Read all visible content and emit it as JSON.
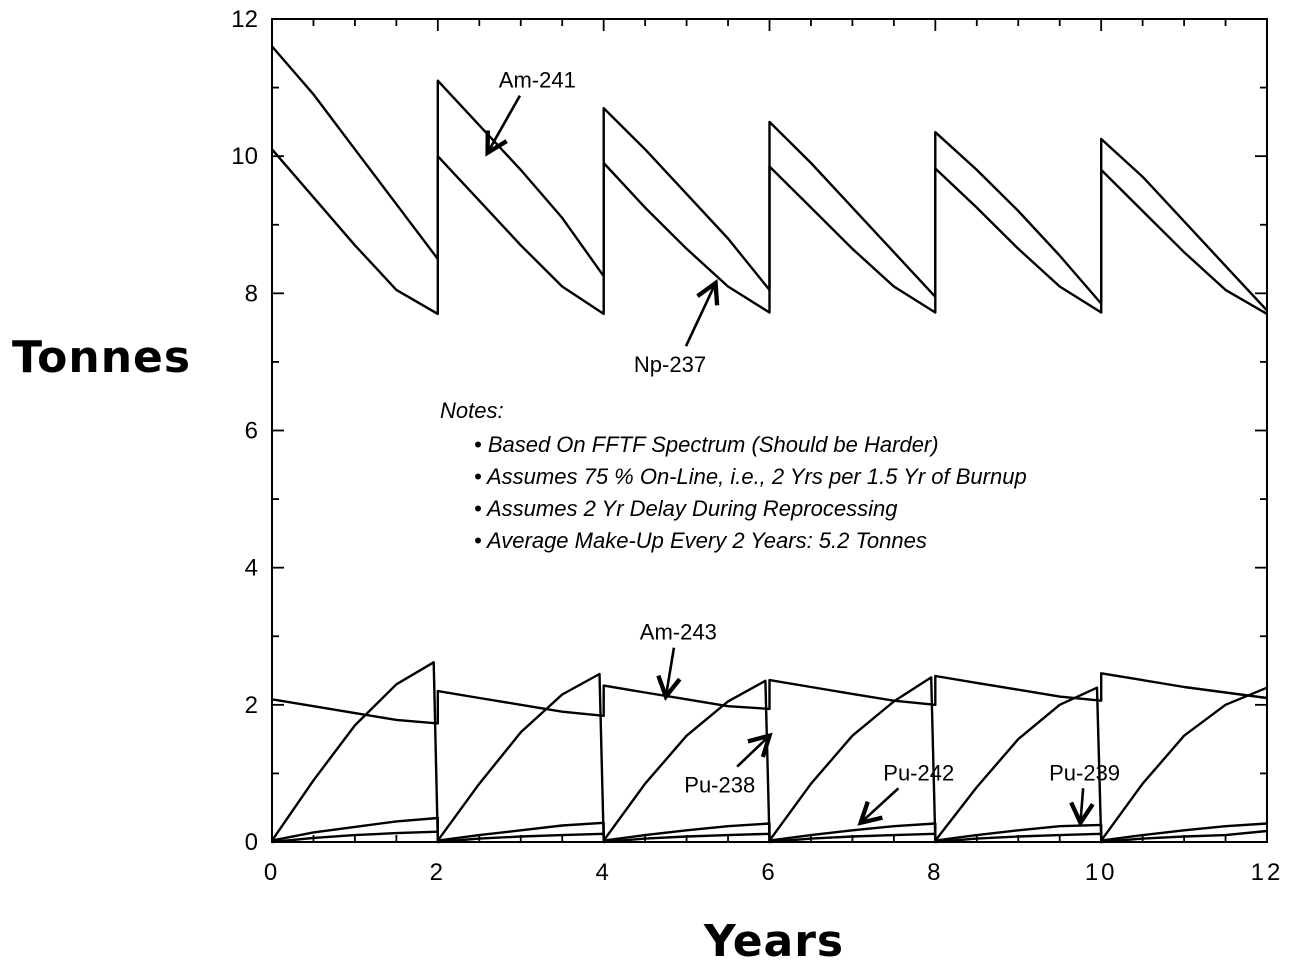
{
  "chart_data": {
    "type": "line",
    "xlabel": "Years",
    "ylabel": "Tonnes",
    "xlim": [
      0,
      12
    ],
    "ylim": [
      0,
      12
    ],
    "x_ticks": [
      "0",
      "2",
      "4",
      "6",
      "8",
      "10",
      "12"
    ],
    "y_ticks": [
      "0",
      "2",
      "4",
      "6",
      "8",
      "10",
      "12"
    ],
    "grid": false,
    "series": [
      {
        "name": "Am-241",
        "segments": [
          [
            [
              0,
              11.6
            ],
            [
              0.5,
              10.9
            ],
            [
              1,
              10.1
            ],
            [
              1.5,
              9.3
            ],
            [
              2,
              8.5
            ]
          ],
          [
            [
              2,
              11.1
            ],
            [
              2.5,
              10.45
            ],
            [
              3,
              9.8
            ],
            [
              3.5,
              9.1
            ],
            [
              4,
              8.25
            ]
          ],
          [
            [
              4,
              10.7
            ],
            [
              4.5,
              10.1
            ],
            [
              5,
              9.45
            ],
            [
              5.5,
              8.8
            ],
            [
              6,
              8.05
            ]
          ],
          [
            [
              6,
              10.5
            ],
            [
              6.5,
              9.9
            ],
            [
              7,
              9.25
            ],
            [
              7.5,
              8.6
            ],
            [
              8,
              7.95
            ]
          ],
          [
            [
              8,
              10.35
            ],
            [
              8.5,
              9.8
            ],
            [
              9,
              9.2
            ],
            [
              9.5,
              8.55
            ],
            [
              10,
              7.85
            ]
          ],
          [
            [
              10,
              10.25
            ],
            [
              10.5,
              9.7
            ],
            [
              11,
              9.05
            ],
            [
              11.5,
              8.4
            ],
            [
              12,
              7.75
            ]
          ]
        ]
      },
      {
        "name": "Np-237",
        "segments": [
          [
            [
              0,
              10.1
            ],
            [
              0.5,
              9.4
            ],
            [
              1,
              8.7
            ],
            [
              1.5,
              8.05
            ],
            [
              2,
              7.7
            ]
          ],
          [
            [
              2,
              10.0
            ],
            [
              2.5,
              9.35
            ],
            [
              3,
              8.7
            ],
            [
              3.5,
              8.1
            ],
            [
              4,
              7.7
            ]
          ],
          [
            [
              4,
              9.9
            ],
            [
              4.5,
              9.25
            ],
            [
              5,
              8.65
            ],
            [
              5.5,
              8.1
            ],
            [
              6,
              7.72
            ]
          ],
          [
            [
              6,
              9.85
            ],
            [
              6.5,
              9.25
            ],
            [
              7,
              8.65
            ],
            [
              7.5,
              8.1
            ],
            [
              8,
              7.72
            ]
          ],
          [
            [
              8,
              9.82
            ],
            [
              8.5,
              9.25
            ],
            [
              9,
              8.65
            ],
            [
              9.5,
              8.1
            ],
            [
              10,
              7.72
            ]
          ],
          [
            [
              10,
              9.8
            ],
            [
              10.5,
              9.2
            ],
            [
              11,
              8.6
            ],
            [
              11.5,
              8.05
            ],
            [
              12,
              7.7
            ]
          ]
        ]
      },
      {
        "name": "Am-243",
        "segments": [
          [
            [
              0,
              2.08
            ],
            [
              0.5,
              1.98
            ],
            [
              1,
              1.88
            ],
            [
              1.5,
              1.78
            ],
            [
              2,
              1.73
            ]
          ],
          [
            [
              2,
              2.2
            ],
            [
              2.5,
              2.1
            ],
            [
              3,
              2.0
            ],
            [
              3.5,
              1.9
            ],
            [
              4,
              1.84
            ]
          ],
          [
            [
              4,
              2.28
            ],
            [
              4.5,
              2.18
            ],
            [
              5,
              2.08
            ],
            [
              5.5,
              1.98
            ],
            [
              6,
              1.94
            ]
          ],
          [
            [
              6,
              2.36
            ],
            [
              6.5,
              2.26
            ],
            [
              7,
              2.16
            ],
            [
              7.5,
              2.06
            ],
            [
              8,
              2.0
            ]
          ],
          [
            [
              8,
              2.42
            ],
            [
              8.5,
              2.32
            ],
            [
              9,
              2.22
            ],
            [
              9.5,
              2.12
            ],
            [
              10,
              2.06
            ]
          ],
          [
            [
              10,
              2.46
            ],
            [
              10.5,
              2.36
            ],
            [
              11,
              2.26
            ],
            [
              11.5,
              2.18
            ],
            [
              12,
              2.1
            ]
          ]
        ]
      },
      {
        "name": "Pu-238",
        "segments": [
          [
            [
              0,
              0.02
            ],
            [
              0.5,
              0.9
            ],
            [
              1,
              1.7
            ],
            [
              1.5,
              2.3
            ],
            [
              1.95,
              2.62
            ]
          ],
          [
            [
              2,
              0.02
            ],
            [
              2.5,
              0.85
            ],
            [
              3,
              1.6
            ],
            [
              3.5,
              2.15
            ],
            [
              3.95,
              2.45
            ]
          ],
          [
            [
              4,
              0.02
            ],
            [
              4.5,
              0.85
            ],
            [
              5,
              1.55
            ],
            [
              5.5,
              2.05
            ],
            [
              5.95,
              2.35
            ]
          ],
          [
            [
              6,
              0.02
            ],
            [
              6.5,
              0.85
            ],
            [
              7,
              1.55
            ],
            [
              7.5,
              2.05
            ],
            [
              7.95,
              2.4
            ]
          ],
          [
            [
              8,
              0.02
            ],
            [
              8.5,
              0.8
            ],
            [
              9,
              1.5
            ],
            [
              9.5,
              2.0
            ],
            [
              9.95,
              2.25
            ]
          ],
          [
            [
              10,
              0.02
            ],
            [
              10.5,
              0.85
            ],
            [
              11,
              1.55
            ],
            [
              11.5,
              2.0
            ],
            [
              12,
              2.25
            ]
          ]
        ]
      },
      {
        "name": "Pu-242",
        "segments": [
          [
            [
              0,
              0.02
            ],
            [
              0.5,
              0.14
            ],
            [
              1,
              0.22
            ],
            [
              1.5,
              0.3
            ],
            [
              2,
              0.35
            ]
          ],
          [
            [
              2,
              0.02
            ],
            [
              2.5,
              0.1
            ],
            [
              3,
              0.17
            ],
            [
              3.5,
              0.24
            ],
            [
              4,
              0.28
            ]
          ],
          [
            [
              4,
              0.02
            ],
            [
              4.5,
              0.1
            ],
            [
              5,
              0.17
            ],
            [
              5.5,
              0.23
            ],
            [
              6,
              0.27
            ]
          ],
          [
            [
              6,
              0.02
            ],
            [
              6.5,
              0.1
            ],
            [
              7,
              0.17
            ],
            [
              7.5,
              0.23
            ],
            [
              8,
              0.27
            ]
          ],
          [
            [
              8,
              0.02
            ],
            [
              8.5,
              0.1
            ],
            [
              9,
              0.17
            ],
            [
              9.5,
              0.23
            ],
            [
              10,
              0.25
            ]
          ],
          [
            [
              10,
              0.02
            ],
            [
              10.5,
              0.1
            ],
            [
              11,
              0.17
            ],
            [
              11.5,
              0.23
            ],
            [
              12,
              0.27
            ]
          ]
        ]
      },
      {
        "name": "Pu-239",
        "segments": [
          [
            [
              0,
              0.0
            ],
            [
              0.5,
              0.06
            ],
            [
              1,
              0.1
            ],
            [
              1.5,
              0.13
            ],
            [
              2,
              0.15
            ]
          ],
          [
            [
              2,
              0.0
            ],
            [
              2.5,
              0.05
            ],
            [
              3,
              0.08
            ],
            [
              3.5,
              0.1
            ],
            [
              4,
              0.12
            ]
          ],
          [
            [
              4,
              0.0
            ],
            [
              4.5,
              0.05
            ],
            [
              5,
              0.08
            ],
            [
              5.5,
              0.1
            ],
            [
              6,
              0.12
            ]
          ],
          [
            [
              6,
              0.0
            ],
            [
              6.5,
              0.05
            ],
            [
              7,
              0.08
            ],
            [
              7.5,
              0.1
            ],
            [
              8,
              0.12
            ]
          ],
          [
            [
              8,
              0.0
            ],
            [
              8.5,
              0.05
            ],
            [
              9,
              0.08
            ],
            [
              9.5,
              0.1
            ],
            [
              10,
              0.12
            ]
          ],
          [
            [
              10,
              0.0
            ],
            [
              10.5,
              0.05
            ],
            [
              11,
              0.08
            ],
            [
              11.5,
              0.1
            ],
            [
              12,
              0.16
            ]
          ]
        ]
      }
    ],
    "annotations": [
      {
        "label": "Am-241",
        "target": [
          2.6,
          10.05
        ],
        "text_at": [
          3.2,
          11.0
        ]
      },
      {
        "label": "Np-237",
        "target": [
          5.35,
          8.15
        ],
        "text_at": [
          4.8,
          6.85
        ]
      },
      {
        "label": "Am-243",
        "target": [
          4.75,
          2.12
        ],
        "text_at": [
          4.9,
          2.95
        ]
      },
      {
        "label": "Pu-238",
        "target": [
          6.0,
          1.55
        ],
        "text_at": [
          5.4,
          0.72
        ]
      },
      {
        "label": "Pu-242",
        "target": [
          7.1,
          0.28
        ],
        "text_at": [
          7.8,
          0.9
        ]
      },
      {
        "label": "Pu-239",
        "target": [
          9.75,
          0.28
        ],
        "text_at": [
          9.8,
          0.9
        ]
      }
    ],
    "notes": {
      "heading": "Notes:",
      "items": [
        "• Based On FFTF Spectrum (Should be Harder)",
        "• Assumes 75 % On-Line, i.e., 2 Yrs per 1.5 Yr of Burnup",
        "• Assumes 2 Yr Delay During Reprocessing",
        "• Average Make-Up Every 2 Years: 5.2 Tonnes"
      ]
    }
  }
}
